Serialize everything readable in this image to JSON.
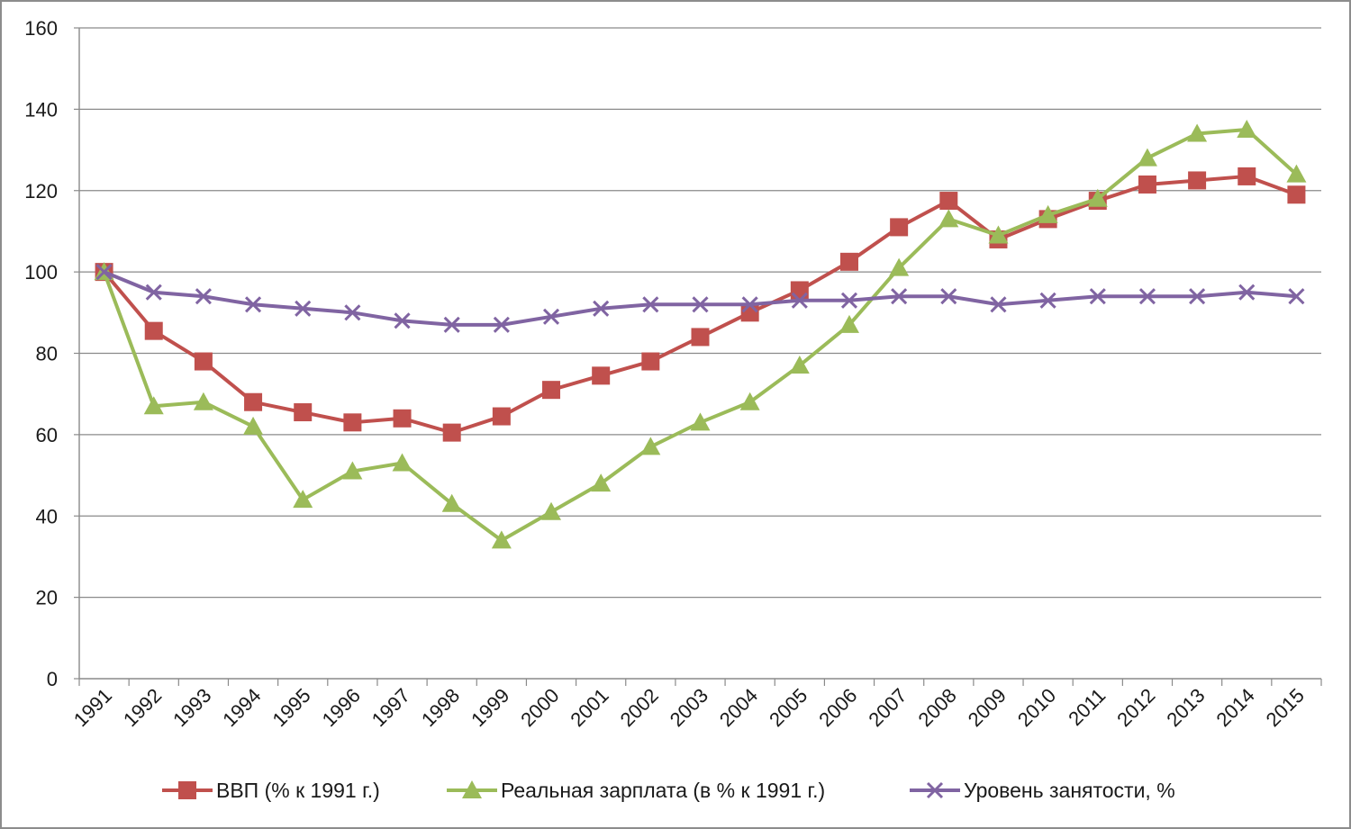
{
  "chart_data": {
    "type": "line",
    "title": "",
    "xlabel": "",
    "ylabel": "",
    "ylim": [
      0,
      160
    ],
    "yticks": [
      0,
      20,
      40,
      60,
      80,
      100,
      120,
      140,
      160
    ],
    "grid": true,
    "legend_position": "bottom",
    "categories": [
      "1991",
      "1992",
      "1993",
      "1994",
      "1995",
      "1996",
      "1997",
      "1998",
      "1999",
      "2000",
      "2001",
      "2002",
      "2003",
      "2004",
      "2005",
      "2006",
      "2007",
      "2008",
      "2009",
      "2010",
      "2011",
      "2012",
      "2013",
      "2014",
      "2015"
    ],
    "series": [
      {
        "name": "ВВП (% к 1991 г.)",
        "color": "#c0504d",
        "marker": "square",
        "values": [
          100,
          85.5,
          78,
          68,
          65.5,
          63,
          64,
          60.5,
          64.5,
          71,
          74.5,
          78,
          84,
          90,
          95.5,
          102.5,
          111,
          117.5,
          108,
          113,
          117.5,
          121.5,
          122.5,
          123.5,
          119
        ]
      },
      {
        "name": "Реальная зарплата (в % к 1991 г.)",
        "color": "#9bbb59",
        "marker": "triangle",
        "values": [
          100,
          67,
          68,
          62,
          44,
          51,
          53,
          43,
          34,
          41,
          48,
          57,
          63,
          68,
          77,
          87,
          101,
          113,
          109,
          114,
          118,
          128,
          134,
          135,
          124
        ]
      },
      {
        "name": "Уровень занятости, %",
        "color": "#8064a2",
        "marker": "x",
        "values": [
          100,
          95,
          94,
          92,
          91,
          90,
          88,
          87,
          87,
          89,
          91,
          92,
          92,
          92,
          93,
          93,
          94,
          94,
          92,
          93,
          94,
          94,
          94,
          95,
          94
        ]
      }
    ]
  }
}
